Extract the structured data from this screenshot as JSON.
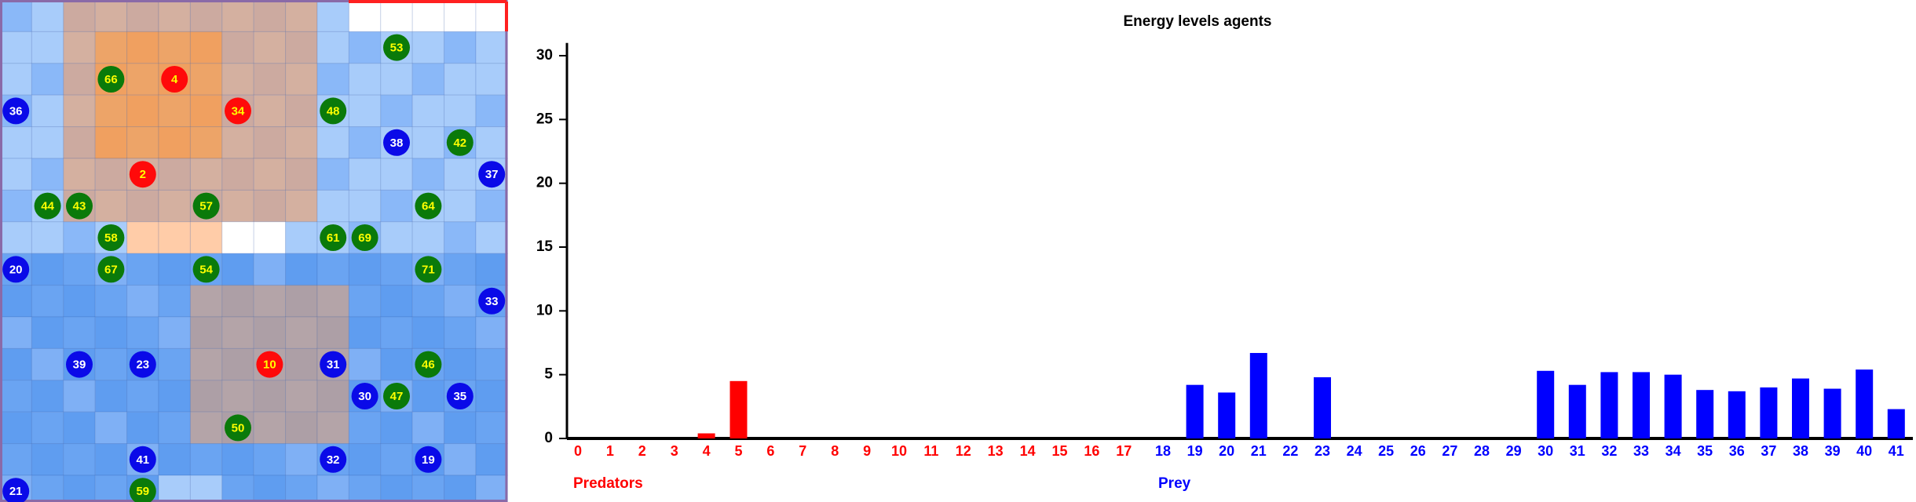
{
  "grid": {
    "agents": [
      {
        "label": "53",
        "kind": "prey"
      },
      {
        "label": "66",
        "kind": "prey"
      },
      {
        "label": "4",
        "kind": "predator"
      },
      {
        "label": "36",
        "kind": "prey-blue"
      },
      {
        "label": "34",
        "kind": "predator"
      },
      {
        "label": "48",
        "kind": "prey"
      },
      {
        "label": "38",
        "kind": "prey-blue"
      },
      {
        "label": "42",
        "kind": "prey"
      },
      {
        "label": "37",
        "kind": "prey-blue"
      },
      {
        "label": "2",
        "kind": "predator"
      },
      {
        "label": "44",
        "kind": "prey"
      },
      {
        "label": "43",
        "kind": "prey"
      },
      {
        "label": "57",
        "kind": "prey"
      },
      {
        "label": "64",
        "kind": "prey"
      },
      {
        "label": "58",
        "kind": "prey"
      },
      {
        "label": "61",
        "kind": "prey"
      },
      {
        "label": "69",
        "kind": "prey"
      },
      {
        "label": "20",
        "kind": "prey-blue"
      },
      {
        "label": "67",
        "kind": "prey"
      },
      {
        "label": "54",
        "kind": "prey"
      },
      {
        "label": "71",
        "kind": "prey"
      },
      {
        "label": "33",
        "kind": "prey-blue"
      },
      {
        "label": "39",
        "kind": "prey-blue"
      },
      {
        "label": "23",
        "kind": "prey-blue"
      },
      {
        "label": "10",
        "kind": "predator"
      },
      {
        "label": "31",
        "kind": "prey-blue"
      },
      {
        "label": "46",
        "kind": "prey"
      },
      {
        "label": "30",
        "kind": "prey-blue"
      },
      {
        "label": "47",
        "kind": "prey"
      },
      {
        "label": "35",
        "kind": "prey-blue"
      },
      {
        "label": "50",
        "kind": "prey"
      },
      {
        "label": "41",
        "kind": "prey-blue"
      },
      {
        "label": "32",
        "kind": "prey-blue"
      },
      {
        "label": "19",
        "kind": "prey-blue"
      },
      {
        "label": "21",
        "kind": "prey-blue"
      },
      {
        "label": "59",
        "kind": "prey"
      }
    ]
  },
  "chart_data": {
    "type": "bar",
    "title": "Energy levels agents",
    "categories": [
      "0",
      "1",
      "2",
      "3",
      "4",
      "5",
      "6",
      "7",
      "8",
      "9",
      "10",
      "11",
      "12",
      "13",
      "14",
      "15",
      "16",
      "17",
      "18",
      "19",
      "20",
      "21",
      "22",
      "23",
      "24",
      "25",
      "26",
      "27",
      "28",
      "29",
      "30",
      "31",
      "32",
      "33",
      "34",
      "35",
      "36",
      "37",
      "38",
      "39",
      "40",
      "41"
    ],
    "series": [
      {
        "name": "Predators",
        "color": "#ff0000",
        "values": [
          0,
          0,
          0,
          0,
          0.4,
          4.5,
          0,
          0,
          0,
          0,
          0,
          0,
          0,
          0,
          0,
          0,
          0,
          0,
          null,
          null,
          null,
          null,
          null,
          null,
          null,
          null,
          null,
          null,
          null,
          null,
          null,
          null,
          null,
          null,
          null,
          null,
          null,
          null,
          null,
          null,
          null,
          null
        ]
      },
      {
        "name": "Prey",
        "color": "#0000ff",
        "values": [
          null,
          null,
          null,
          null,
          null,
          null,
          null,
          null,
          null,
          null,
          null,
          null,
          null,
          null,
          null,
          null,
          null,
          null,
          0,
          4.2,
          3.6,
          6.7,
          0,
          4.8,
          0,
          0,
          0,
          0,
          0,
          0,
          5.3,
          4.2,
          5.2,
          5.2,
          5.0,
          3.8,
          3.7,
          4.0,
          4.7,
          3.9,
          5.4,
          2.3
        ]
      }
    ],
    "ylim": [
      0,
      31
    ],
    "yticks": [
      0,
      5,
      10,
      15,
      20,
      25,
      30
    ]
  }
}
